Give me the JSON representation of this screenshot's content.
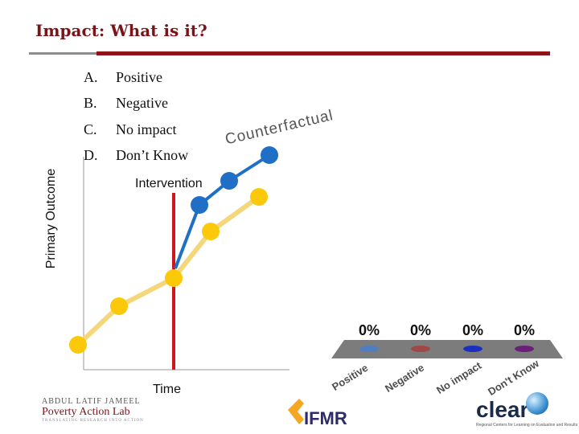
{
  "slide": {
    "title": "Impact: What is it?"
  },
  "options": [
    {
      "letter": "A.",
      "text": "Positive"
    },
    {
      "letter": "B.",
      "text": "Negative"
    },
    {
      "letter": "C.",
      "text": "No impact"
    },
    {
      "letter": "D.",
      "text": "Don’t Know"
    }
  ],
  "diagram": {
    "y_axis_label": "Primary Outcome",
    "x_axis_label": "Time",
    "intervention_label": "Intervention",
    "counterfactual_label": "Counterfactual",
    "colors": {
      "counterfactual_line": "#f4d77a",
      "counterfactual_marker": "#fcc90a",
      "actual_line": "#1f6fc6",
      "intervention_line": "#d0161d"
    }
  },
  "poll": {
    "bars": [
      {
        "label": "Positive",
        "percent": "0%",
        "color": "#4f7fc0"
      },
      {
        "label": "Negative",
        "percent": "0%",
        "color": "#a04848"
      },
      {
        "label": "No impact",
        "percent": "0%",
        "color": "#1a2fbf"
      },
      {
        "label": "Don't Know",
        "percent": "0%",
        "color": "#6b1f7a"
      }
    ],
    "tray_color": "#7c7c7c"
  },
  "logos": {
    "jameel_line1": "ABDUL LATIF JAMEEL",
    "jameel_line2": "Poverty Action Lab",
    "jameel_line3": "TRANSLATING RESEARCH INTO ACTION",
    "ifmr": "IFMR",
    "clear": "clear",
    "clear_sub": "Regional Centers for Learning on Evaluation and Results"
  }
}
